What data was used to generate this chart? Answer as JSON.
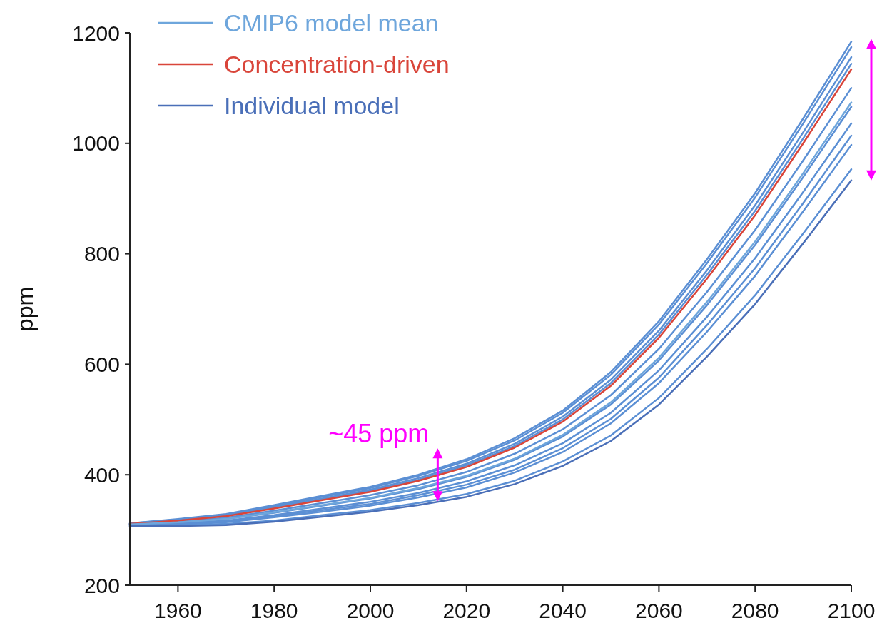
{
  "chart_data": {
    "type": "line",
    "ylabel": "ppm",
    "xlim": [
      1950,
      2100
    ],
    "xticks": [
      1960,
      1980,
      2000,
      2020,
      2040,
      2060,
      2080,
      2100
    ],
    "ylim": [
      200,
      1200
    ],
    "yticks": [
      200,
      400,
      600,
      800,
      1000,
      1200
    ],
    "grid": false,
    "legend": "top left",
    "line_style": "solid",
    "marker": "none",
    "x": [
      1950,
      1960,
      1970,
      1980,
      1990,
      2000,
      2010,
      2020,
      2030,
      2040,
      2050,
      2060,
      2070,
      2080,
      2090,
      2100
    ],
    "annotations": [
      {
        "text": "~45 ppm",
        "x": 2014,
        "y": 400
      }
    ],
    "series": [
      {
        "name": "CMIP6 model mean",
        "color": "#6ea6dc",
        "values": [
          310,
          314,
          320,
          332,
          345,
          358,
          376,
          398,
          429,
          472,
          531,
          612,
          713,
          822,
          946,
          1074
        ]
      },
      {
        "name": "Concentration-driven",
        "color": "#d9453a",
        "values": [
          311,
          317,
          325,
          339,
          354,
          369,
          389,
          414,
          449,
          496,
          561,
          648,
          755,
          870,
          1000,
          1134
        ]
      },
      {
        "name": "Individual model",
        "color": "#4a6fb8",
        "values": [
          307,
          307,
          309,
          315,
          324,
          333,
          345,
          360,
          383,
          416,
          461,
          527,
          614,
          709,
          819,
          933
        ]
      },
      {
        "color": "#5b8fd4",
        "values": [
          312,
          320,
          329,
          345,
          362,
          378,
          400,
          428,
          466,
          516,
          586,
          678,
          790,
          910,
          1045,
          1184
        ]
      },
      {
        "color": "#5b8fd4",
        "values": [
          312,
          319,
          328,
          344,
          360,
          376,
          398,
          425,
          462,
          512,
          581,
          672,
          783,
          902,
          1036,
          1174
        ]
      },
      {
        "color": "#5b8fd4",
        "values": [
          311,
          318,
          327,
          342,
          357,
          373,
          394,
          420,
          456,
          505,
          572,
          661,
          770,
          888,
          1020,
          1156
        ]
      },
      {
        "color": "#5b8fd4",
        "values": [
          311,
          318,
          326,
          340,
          356,
          371,
          391,
          417,
          452,
          500,
          566,
          654,
          762,
          878,
          1009,
          1144
        ]
      },
      {
        "color": "#5b8fd4",
        "values": [
          310,
          315,
          322,
          335,
          349,
          363,
          381,
          405,
          438,
          482,
          544,
          628,
          731,
          843,
          969,
          1100
        ]
      },
      {
        "color": "#5b8fd4",
        "values": [
          310,
          314,
          320,
          331,
          344,
          357,
          374,
          396,
          427,
          469,
          527,
          607,
          707,
          816,
          939,
          1066
        ]
      },
      {
        "color": "#5b8fd4",
        "values": [
          309,
          312,
          317,
          327,
          339,
          351,
          367,
          388,
          417,
          457,
          512,
          589,
          686,
          792,
          912,
          1036
        ]
      },
      {
        "color": "#5b8fd4",
        "values": [
          309,
          311,
          315,
          325,
          336,
          347,
          363,
          382,
          409,
          448,
          501,
          576,
          671,
          774,
          892,
          1014
        ]
      },
      {
        "color": "#5b8fd4",
        "values": [
          308,
          310,
          314,
          323,
          333,
          344,
          359,
          377,
          404,
          441,
          493,
          566,
          659,
          760,
          877,
          997
        ]
      },
      {
        "color": "#5b8fd4",
        "values": [
          307,
          308,
          311,
          317,
          327,
          336,
          349,
          365,
          389,
          424,
          471,
          539,
          628,
          725,
          837,
          953
        ]
      }
    ]
  }
}
